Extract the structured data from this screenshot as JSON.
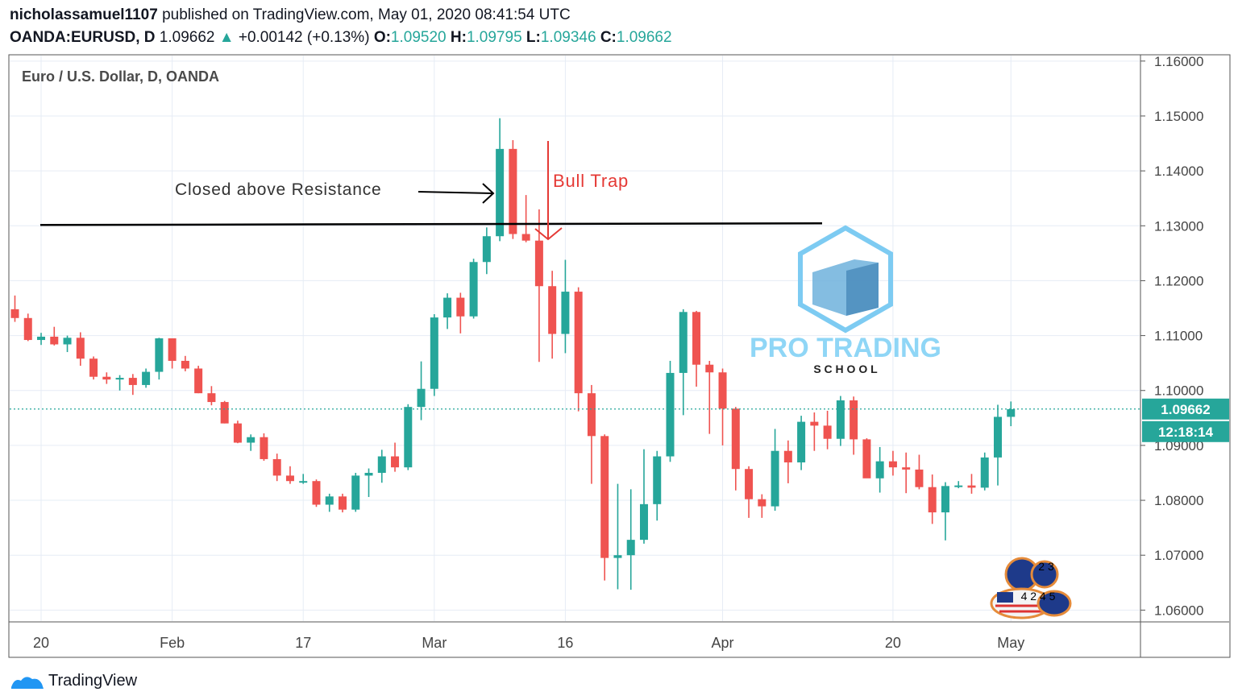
{
  "header": {
    "author": "nicholassamuel1107",
    "published_text": "published on TradingView.com, May 01, 2020 08:41:54 UTC",
    "symbol_label": "OANDA:EURUSD, D",
    "last_price": "1.09662",
    "change_arrow": "▲",
    "change": "+0.00142 (+0.13%)",
    "o_label": "O:",
    "o_value": "1.09520",
    "h_label": "H:",
    "h_value": "1.09795",
    "l_label": "L:",
    "l_value": "1.09346",
    "c_label": "C:",
    "c_value": "1.09662"
  },
  "footer": {
    "brand": "TradingView"
  },
  "colors": {
    "up": "#26a69a",
    "down": "#ef5350",
    "grid": "#e6ecf5",
    "annotation_red": "#e53935"
  },
  "chart_data": {
    "type": "candlestick",
    "title": "Euro / U.S. Dollar, D, OANDA",
    "ylim": [
      1.058,
      1.161
    ],
    "y_ticks": [
      "1.16000",
      "1.15000",
      "1.14000",
      "1.13000",
      "1.12000",
      "1.11000",
      "1.10000",
      "1.09000",
      "1.08000",
      "1.07000",
      "1.06000"
    ],
    "x_ticks": [
      {
        "label": "20",
        "index": 2
      },
      {
        "label": "Feb",
        "index": 12
      },
      {
        "label": "17",
        "index": 22
      },
      {
        "label": "Mar",
        "index": 32
      },
      {
        "label": "16",
        "index": 42
      },
      {
        "label": "Apr",
        "index": 54
      },
      {
        "label": "20",
        "index": 67
      },
      {
        "label": "May",
        "index": 76
      }
    ],
    "candles": [
      [
        1.1148,
        1.1173,
        1.1125,
        1.1132
      ],
      [
        1.1132,
        1.114,
        1.109,
        1.1092
      ],
      [
        1.1092,
        1.1105,
        1.1083,
        1.1098
      ],
      [
        1.1098,
        1.1116,
        1.1082,
        1.1084
      ],
      [
        1.1084,
        1.11,
        1.107,
        1.1096
      ],
      [
        1.1096,
        1.1106,
        1.1045,
        1.1058
      ],
      [
        1.1058,
        1.1062,
        1.102,
        1.1025
      ],
      [
        1.1025,
        1.1033,
        1.1012,
        1.102
      ],
      [
        1.102,
        1.1028,
        1.1,
        1.1023
      ],
      [
        1.1023,
        1.103,
        1.0992,
        1.101
      ],
      [
        1.101,
        1.104,
        1.1005,
        1.1034
      ],
      [
        1.1034,
        1.1096,
        1.102,
        1.1095
      ],
      [
        1.1095,
        1.1095,
        1.104,
        1.1054
      ],
      [
        1.1054,
        1.1063,
        1.1035,
        1.104
      ],
      [
        1.104,
        1.1045,
        1.0995,
        1.0995
      ],
      [
        1.0995,
        1.1008,
        1.0973,
        1.0979
      ],
      [
        1.0979,
        1.0981,
        1.094,
        1.094
      ],
      [
        1.094,
        1.0945,
        1.0904,
        1.0905
      ],
      [
        1.0905,
        1.092,
        1.089,
        1.0915
      ],
      [
        1.0915,
        1.0922,
        1.0872,
        1.0875
      ],
      [
        1.0875,
        1.0885,
        1.0835,
        1.0845
      ],
      [
        1.0845,
        1.0862,
        1.083,
        1.0835
      ],
      [
        1.0835,
        1.0848,
        1.083,
        1.0835
      ],
      [
        1.0835,
        1.0838,
        1.0788,
        1.0792
      ],
      [
        1.0792,
        1.0812,
        1.0779,
        1.0807
      ],
      [
        1.0807,
        1.0812,
        1.0778,
        1.0783
      ],
      [
        1.0783,
        1.085,
        1.0779,
        1.0845
      ],
      [
        1.0845,
        1.0858,
        1.0806,
        1.085
      ],
      [
        1.085,
        1.0892,
        1.0832,
        1.088
      ],
      [
        1.088,
        1.0905,
        1.0852,
        1.086
      ],
      [
        1.086,
        1.0975,
        1.0855,
        1.097
      ],
      [
        1.097,
        1.1053,
        1.0946,
        1.1003
      ],
      [
        1.1003,
        1.1139,
        1.099,
        1.1133
      ],
      [
        1.1133,
        1.1177,
        1.1112,
        1.1169
      ],
      [
        1.1169,
        1.1178,
        1.1104,
        1.1135
      ],
      [
        1.1135,
        1.124,
        1.1131,
        1.1234
      ],
      [
        1.1234,
        1.1297,
        1.1212,
        1.1281
      ],
      [
        1.1281,
        1.1496,
        1.1272,
        1.144
      ],
      [
        1.144,
        1.1456,
        1.1276,
        1.1285
      ],
      [
        1.1285,
        1.1356,
        1.127,
        1.1273
      ],
      [
        1.1273,
        1.133,
        1.1052,
        1.119
      ],
      [
        1.119,
        1.1218,
        1.1058,
        1.1103
      ],
      [
        1.1103,
        1.1238,
        1.1068,
        1.118
      ],
      [
        1.118,
        1.1188,
        1.0962,
        1.0995
      ],
      [
        1.0995,
        1.101,
        1.083,
        1.0917
      ],
      [
        1.0917,
        1.092,
        1.0654,
        1.0695
      ],
      [
        1.0695,
        1.083,
        1.0638,
        1.07
      ],
      [
        1.07,
        1.082,
        1.0637,
        1.0728
      ],
      [
        1.0728,
        1.0893,
        1.0721,
        1.0793
      ],
      [
        1.0793,
        1.089,
        1.0763,
        1.088
      ],
      [
        1.088,
        1.1054,
        1.087,
        1.1032
      ],
      [
        1.1032,
        1.1148,
        1.0955,
        1.1143
      ],
      [
        1.1143,
        1.1145,
        1.1007,
        1.1047
      ],
      [
        1.1047,
        1.1054,
        1.0921,
        1.1033
      ],
      [
        1.1033,
        1.104,
        1.09,
        1.0967
      ],
      [
        1.0967,
        1.097,
        1.0818,
        1.0857
      ],
      [
        1.0857,
        1.0862,
        1.0768,
        1.0802
      ],
      [
        1.0802,
        1.0811,
        1.0768,
        1.0789
      ],
      [
        1.0789,
        1.093,
        1.0781,
        1.089
      ],
      [
        1.089,
        1.0909,
        1.0831,
        1.0869
      ],
      [
        1.0869,
        1.0954,
        1.0855,
        1.0943
      ],
      [
        1.0943,
        1.096,
        1.089,
        1.0936
      ],
      [
        1.0936,
        1.0963,
        1.0893,
        1.0912
      ],
      [
        1.0912,
        1.099,
        1.0899,
        1.0982
      ],
      [
        1.0982,
        1.0989,
        1.0883,
        1.0911
      ],
      [
        1.0911,
        1.0913,
        1.0849,
        1.084
      ],
      [
        1.084,
        1.0897,
        1.0814,
        1.0871
      ],
      [
        1.0871,
        1.089,
        1.0845,
        1.086
      ],
      [
        1.086,
        1.0887,
        1.0813,
        1.0856
      ],
      [
        1.0856,
        1.0883,
        1.082,
        1.0824
      ],
      [
        1.0824,
        1.0847,
        1.0757,
        1.0778
      ],
      [
        1.0778,
        1.0833,
        1.0727,
        1.0826
      ],
      [
        1.0826,
        1.0835,
        1.0822,
        1.0827
      ],
      [
        1.0827,
        1.0848,
        1.0812,
        1.0823
      ],
      [
        1.0823,
        1.0887,
        1.0818,
        1.0878
      ],
      [
        1.0878,
        1.0974,
        1.0827,
        1.0952
      ],
      [
        1.0952,
        1.098,
        1.0935,
        1.0966
      ]
    ],
    "last_price_label": "1.09662",
    "countdown_label": "12:18:14",
    "resistance_level": 1.1303,
    "annotations": {
      "resistance_text": "Closed above Resistance",
      "bull_trap_text": "Bull Trap"
    },
    "watermark": {
      "line1": "PRO TRADING",
      "line2": "S C H O O L"
    },
    "flags_widget": {
      "row1": "2 3",
      "row2": "4 2 4 5"
    }
  }
}
